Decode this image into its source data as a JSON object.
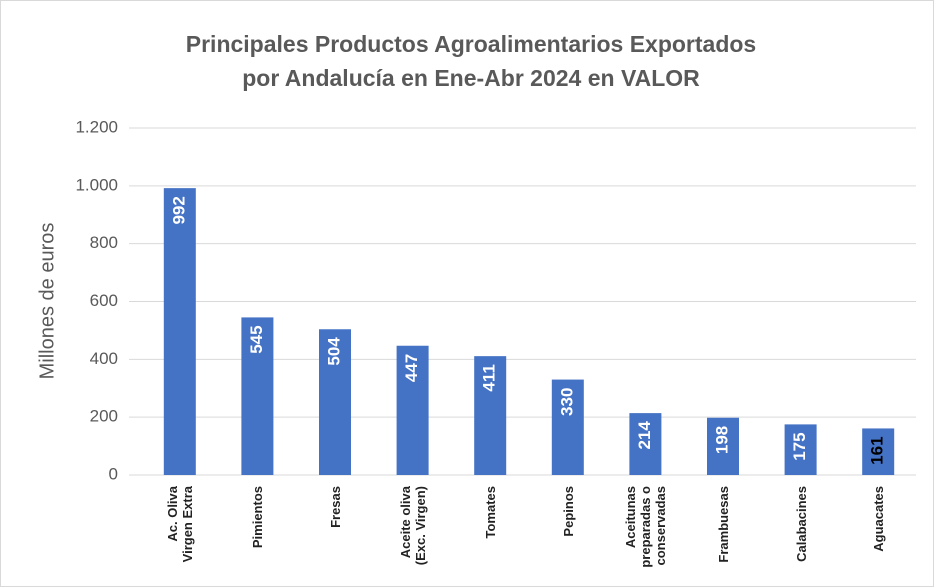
{
  "chart_data": {
    "type": "bar",
    "title": "Principales Productos Agroalimentarios Exportados por Andalucía en Ene-Abr 2024 en VALOR",
    "ylabel": "Millones de euros",
    "categories": [
      "Ac. Oliva Virgen Extra",
      "Pimientos",
      "Fresas",
      "Aceite oliva (Exc. Virgen)",
      "Tomates",
      "Pepinos",
      "Aceitunas preparadas o conservadas",
      "Frambuesas",
      "Calabacines",
      "Aguacates"
    ],
    "values": [
      992,
      545,
      504,
      447,
      411,
      330,
      214,
      198,
      175,
      161
    ],
    "color": "#4472c4",
    "ylim": [
      0,
      1200
    ],
    "yticks": [
      0,
      200,
      400,
      600,
      800,
      {
        "value": 1000,
        "label": "1.000"
      },
      {
        "value": 1200,
        "label": "1.200"
      }
    ],
    "grid": true
  }
}
